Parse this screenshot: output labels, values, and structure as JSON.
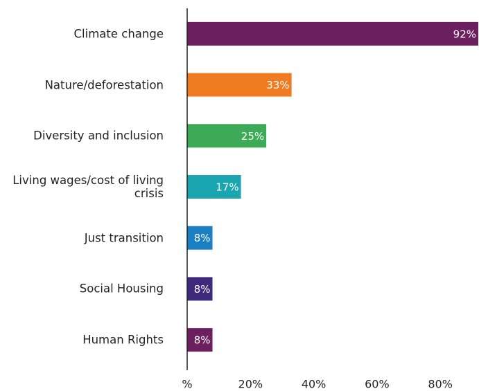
{
  "chart_data": {
    "type": "bar",
    "orientation": "horizontal",
    "categories": [
      "Climate change",
      "Nature/deforestation",
      "Diversity and inclusion",
      "Living wages/cost of living crisis",
      "Just transition",
      "Social Housing",
      "Human Rights"
    ],
    "values": [
      92,
      33,
      25,
      17,
      8,
      8,
      8
    ],
    "value_labels": [
      "92%",
      "33%",
      "25%",
      "17%",
      "8%",
      "8%",
      "8%"
    ],
    "colors": [
      "#6b1f5e",
      "#f07c22",
      "#3daa57",
      "#1aa6b1",
      "#1b7fc4",
      "#3e2a7d",
      "#6b1f5e"
    ],
    "xlim": [
      0,
      92
    ],
    "xticks": [
      {
        "value": 0,
        "label": "%"
      },
      {
        "value": 20,
        "label": "20%"
      },
      {
        "value": 40,
        "label": "40%"
      },
      {
        "value": 60,
        "label": "60%"
      },
      {
        "value": 80,
        "label": "80%"
      }
    ],
    "grid": false
  }
}
